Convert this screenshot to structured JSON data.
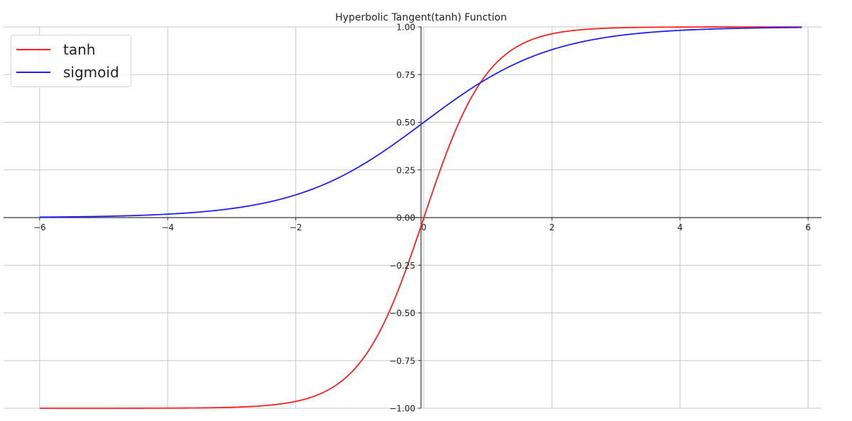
{
  "chart_data": {
    "type": "line",
    "title": "Hyperbolic Tangent(tanh) Function",
    "xlabel": "",
    "ylabel": "",
    "xlim": [
      -6.6,
      6.4
    ],
    "ylim": [
      -1.0,
      1.0
    ],
    "grid": true,
    "legend_position": "upper left",
    "x_ticks": [
      -6,
      -4,
      -2,
      0,
      2,
      4,
      6
    ],
    "x_tick_labels": [
      "−6",
      "−4",
      "−2",
      "0",
      "2",
      "4",
      "6"
    ],
    "y_ticks": [
      1.0,
      0.75,
      0.5,
      0.25,
      0.0,
      -0.25,
      -0.5,
      -0.75,
      -1.0
    ],
    "y_tick_labels": [
      "1.00",
      "0.75",
      "0.50",
      "0.25",
      "0.00",
      "−0.25",
      "−0.50",
      "−0.75",
      "−1.00"
    ],
    "x": [
      -6,
      -5,
      -4,
      -3,
      -2,
      -1.5,
      -1,
      -0.5,
      0,
      0.5,
      1,
      1.5,
      2,
      3,
      4,
      5,
      5.9
    ],
    "series": [
      {
        "name": "tanh",
        "color": "#ff2020",
        "values": [
          -1.0,
          -0.9999,
          -0.9993,
          -0.9951,
          -0.964,
          -0.9051,
          -0.7616,
          -0.4621,
          0.0,
          0.4621,
          0.7616,
          0.9051,
          0.964,
          0.9951,
          0.9993,
          0.9999,
          1.0
        ]
      },
      {
        "name": "sigmoid",
        "color": "#2020ff",
        "values": [
          0.0025,
          0.0067,
          0.018,
          0.0474,
          0.1192,
          0.1824,
          0.2689,
          0.3775,
          0.5,
          0.6225,
          0.7311,
          0.8176,
          0.8808,
          0.9526,
          0.982,
          0.9933,
          0.9973
        ]
      }
    ]
  },
  "legend": {
    "items": [
      {
        "label": "tanh",
        "color": "#ff2020"
      },
      {
        "label": "sigmoid",
        "color": "#2020ff"
      }
    ]
  }
}
